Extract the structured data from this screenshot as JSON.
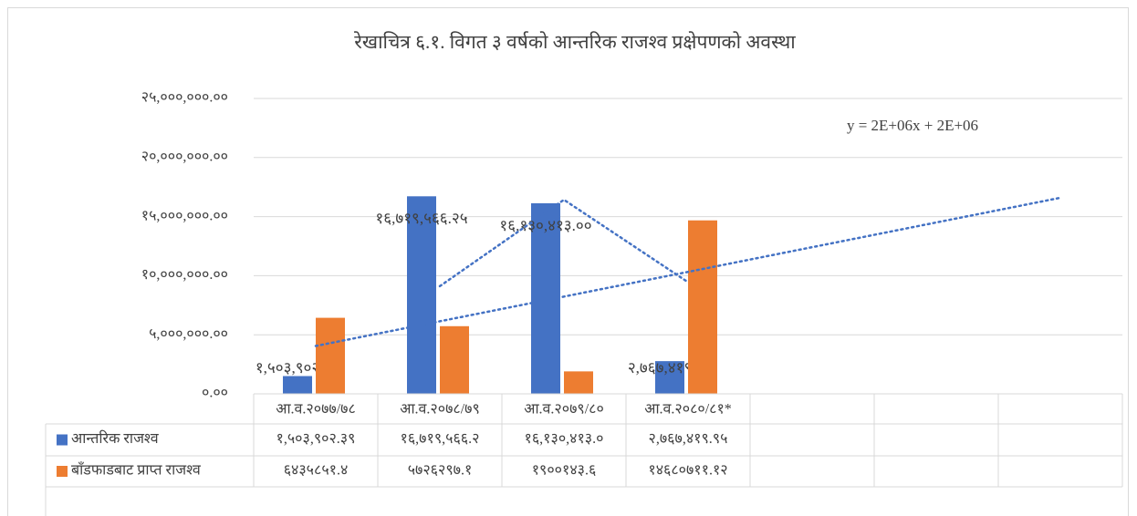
{
  "chart_data": {
    "type": "bar",
    "title": "रेखाचित्र ६.१. विगत ३ वर्षको आन्तरिक राजश्व प्रक्षेपणको अवस्था",
    "annotation": "y = 2E+06x + 2E+06",
    "categories": [
      "आ.व.२०७७/७८",
      "आ.व.२०७८/७९",
      "आ.व.२०७९/८०",
      "आ.व.२०८०/८१*",
      null,
      null,
      null
    ],
    "series": [
      {
        "name": "आन्तरिक राजश्व",
        "color": "#4472c4",
        "values": [
          1503902.39,
          16719566.25,
          16130413.0,
          2767419.95,
          null,
          null,
          null
        ],
        "value_labels": [
          "१,५०३,९०२.३९",
          "१६,७१९,५६६.२५",
          "१६,१३०,४१३.००",
          "२,७६७,४१९.९५",
          null,
          null,
          null
        ],
        "table_labels": [
          "१,५०३,९०२.३९",
          "१६,७१९,५६६.२",
          "१६,१३०,४१३.०",
          "२,७६७,४१९.९५",
          null,
          null,
          null
        ],
        "trendline": "moving_average"
      },
      {
        "name": "बाँडफाडबाट प्राप्त राजश्व",
        "color": "#ed7d31",
        "values": [
          6435851.4,
          5726297.1,
          1900143.6,
          14680711.12,
          null,
          null,
          null
        ],
        "table_labels": [
          "६४३५८५१.४",
          "५७२६२९७.१",
          "१९००१४३.६",
          "१४६८०७११.१२",
          null,
          null,
          null
        ],
        "trendline": "linear"
      }
    ],
    "ylim": [
      0,
      25000000
    ],
    "yticks": [
      {
        "value": 0,
        "label": "०.००"
      },
      {
        "value": 5000000,
        "label": "५,०००,०००.००"
      },
      {
        "value": 10000000,
        "label": "१०,०००,०००.००"
      },
      {
        "value": 15000000,
        "label": "१५,०००,०००.००"
      },
      {
        "value": 20000000,
        "label": "२०,०००,०००.००"
      },
      {
        "value": 25000000,
        "label": "२५,०००,०००.००"
      }
    ],
    "grid": true,
    "data_table": true
  }
}
